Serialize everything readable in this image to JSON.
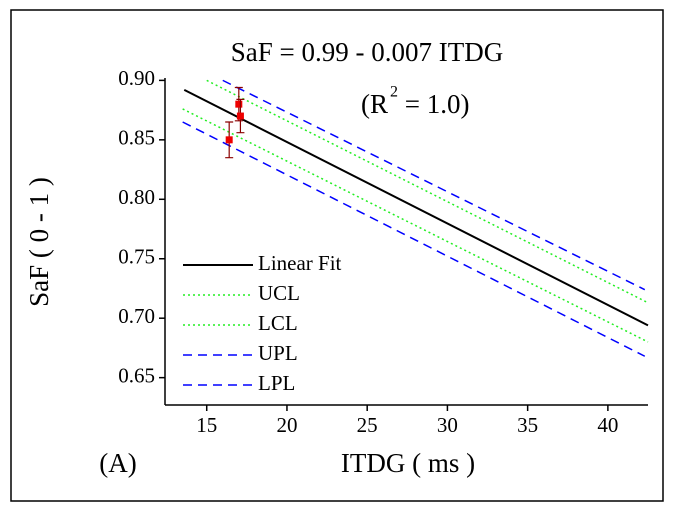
{
  "chart_data": {
    "type": "line",
    "title": "SaF = 0.99 - 0.007 ITDG",
    "annotation": "(R",
    "annotation_superscript": "2",
    "annotation_end": " = 1.0)",
    "panel_label": "(A)",
    "x_label": "ITDG ( ms )",
    "y_label": "SaF ( 0 - 1 )",
    "xlim": [
      12.4,
      42.5
    ],
    "xticks": [
      15,
      20,
      25,
      30,
      35,
      40
    ],
    "ylim": [
      0.627,
      0.902
    ],
    "yticks": [
      {
        "value": 0.65,
        "label": "0.65"
      },
      {
        "value": 0.7,
        "label": "0.70"
      },
      {
        "value": 0.75,
        "label": "0.75"
      },
      {
        "value": 0.8,
        "label": "0.80"
      },
      {
        "value": 0.85,
        "label": "0.85"
      },
      {
        "value": 0.9,
        "label": "0.90"
      }
    ],
    "legend": "lower left",
    "series": [
      {
        "name": "Linear Fit",
        "color": "#000000",
        "dash": "solid",
        "x": [
          13.6,
          42.5
        ],
        "values": [
          0.892,
          0.694
        ]
      },
      {
        "name": "UCL",
        "color": "#22ee22",
        "dash": "dotted",
        "x": [
          15.0,
          42.5
        ],
        "values": [
          0.9,
          0.713
        ]
      },
      {
        "name": "LCL",
        "color": "#22ee22",
        "dash": "dotted",
        "x": [
          13.5,
          42.5
        ],
        "values": [
          0.876,
          0.68
        ]
      },
      {
        "name": "UPL",
        "color": "#0000ff",
        "dash": "dashed",
        "x": [
          16.0,
          42.3
        ],
        "values": [
          0.9,
          0.724
        ]
      },
      {
        "name": "LPL",
        "color": "#0000ff",
        "dash": "dashed",
        "x": [
          13.5,
          42.3
        ],
        "values": [
          0.865,
          0.668
        ]
      }
    ],
    "points": {
      "color": "#ee0000",
      "error_color": "#8b0000",
      "x": [
        16.4,
        17.0,
        17.1
      ],
      "values": [
        0.85,
        0.88,
        0.87
      ],
      "errors": [
        0.015,
        0.014,
        0.014
      ]
    }
  }
}
